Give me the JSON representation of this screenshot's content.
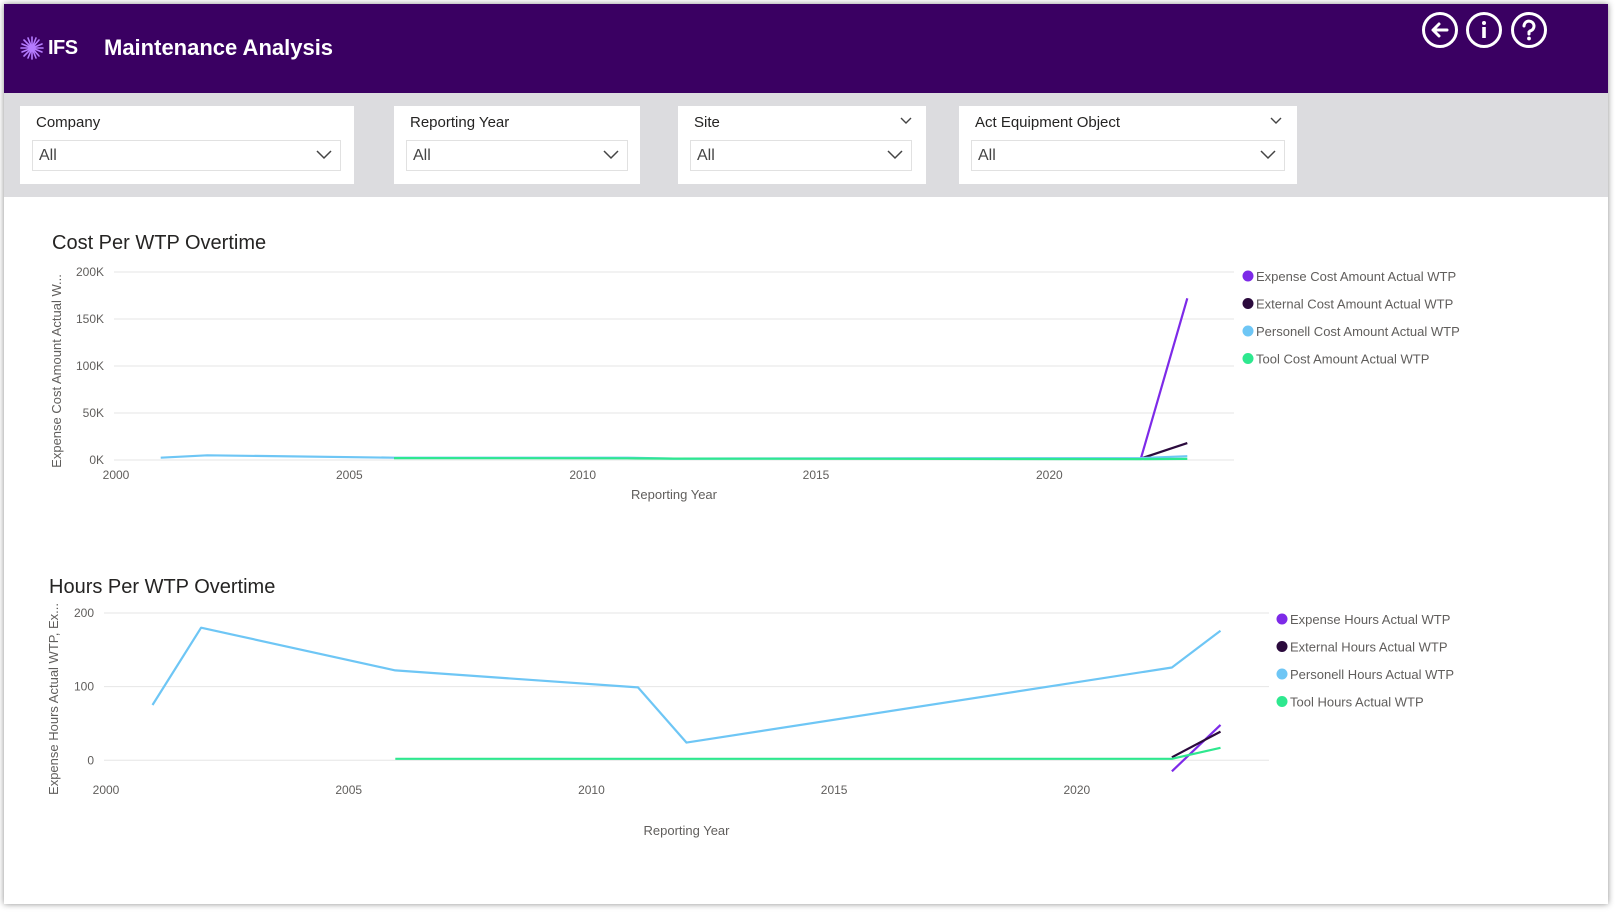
{
  "header": {
    "logo_text": "IFS",
    "title": "Maintenance Analysis",
    "buttons": {
      "back": "back-icon",
      "info": "info-icon",
      "help": "help-icon"
    }
  },
  "filters": [
    {
      "label": "Company",
      "value": "All"
    },
    {
      "label": "Reporting Year",
      "value": "All"
    },
    {
      "label": "Site",
      "value": "All"
    },
    {
      "label": "Act Equipment Object",
      "value": "All"
    }
  ],
  "colors": {
    "header_bg": "#3a0062",
    "series": [
      "#7d2ae8",
      "#2b0a3d",
      "#6ec6f5",
      "#2ee88f"
    ]
  },
  "chart_data": [
    {
      "type": "line",
      "title": "Cost Per WTP Overtime",
      "xlabel": "Reporting Year",
      "ylabel": "Expense Cost Amount Actual W...",
      "xlim": [
        2000,
        2024
      ],
      "ylim": [
        0,
        200000
      ],
      "xticks": [
        2000,
        2005,
        2010,
        2015,
        2020
      ],
      "yticks": [
        {
          "v": 0,
          "label": "0K"
        },
        {
          "v": 50000,
          "label": "50K"
        },
        {
          "v": 100000,
          "label": "100K"
        },
        {
          "v": 150000,
          "label": "150K"
        },
        {
          "v": 200000,
          "label": "200K"
        }
      ],
      "grid": true,
      "legend": "right",
      "series": [
        {
          "name": "Expense Cost Amount Actual WTP",
          "color": "#7d2ae8",
          "points": [
            [
              2022,
              1000
            ],
            [
              2023,
              172000
            ]
          ]
        },
        {
          "name": "External Cost Amount Actual WTP",
          "color": "#2b0a3d",
          "points": [
            [
              2022,
              1500
            ],
            [
              2023,
              18000
            ]
          ]
        },
        {
          "name": "Personell Cost Amount Actual WTP",
          "color": "#6ec6f5",
          "points": [
            [
              2001,
              2500
            ],
            [
              2002,
              5000
            ],
            [
              2006,
              2500
            ],
            [
              2011,
              2500
            ],
            [
              2012,
              1500
            ],
            [
              2022,
              2000
            ],
            [
              2023,
              4000
            ]
          ]
        },
        {
          "name": "Tool Cost Amount Actual WTP",
          "color": "#2ee88f",
          "points": [
            [
              2006,
              2000
            ],
            [
              2011,
              1800
            ],
            [
              2012,
              1500
            ],
            [
              2022,
              1000
            ],
            [
              2023,
              1200
            ]
          ]
        }
      ]
    },
    {
      "type": "line",
      "title": "Hours Per WTP Overtime",
      "xlabel": "Reporting Year",
      "ylabel": "Expense Hours Actual WTP, Ex...",
      "xlim": [
        2000,
        2024
      ],
      "ylim": [
        -20,
        200
      ],
      "xticks": [
        2000,
        2005,
        2010,
        2015,
        2020
      ],
      "yticks": [
        {
          "v": 0,
          "label": "0"
        },
        {
          "v": 100,
          "label": "100"
        },
        {
          "v": 200,
          "label": "200"
        }
      ],
      "grid": true,
      "legend": "right",
      "series": [
        {
          "name": "Expense Hours Actual WTP",
          "color": "#7d2ae8",
          "points": [
            [
              2022,
              -15
            ],
            [
              2023,
              48
            ]
          ]
        },
        {
          "name": "External Hours Actual WTP",
          "color": "#2b0a3d",
          "points": [
            [
              2022,
              4
            ],
            [
              2023,
              39
            ]
          ]
        },
        {
          "name": "Personell Hours Actual WTP",
          "color": "#6ec6f5",
          "points": [
            [
              2001,
              75
            ],
            [
              2002,
              180
            ],
            [
              2006,
              122
            ],
            [
              2011,
              99
            ],
            [
              2012,
              24
            ],
            [
              2022,
              126
            ],
            [
              2023,
              176
            ]
          ]
        },
        {
          "name": "Tool Hours Actual WTP",
          "color": "#2ee88f",
          "points": [
            [
              2006,
              2
            ],
            [
              2011,
              2
            ],
            [
              2012,
              2
            ],
            [
              2022,
              2
            ],
            [
              2023,
              17
            ]
          ]
        }
      ]
    }
  ]
}
